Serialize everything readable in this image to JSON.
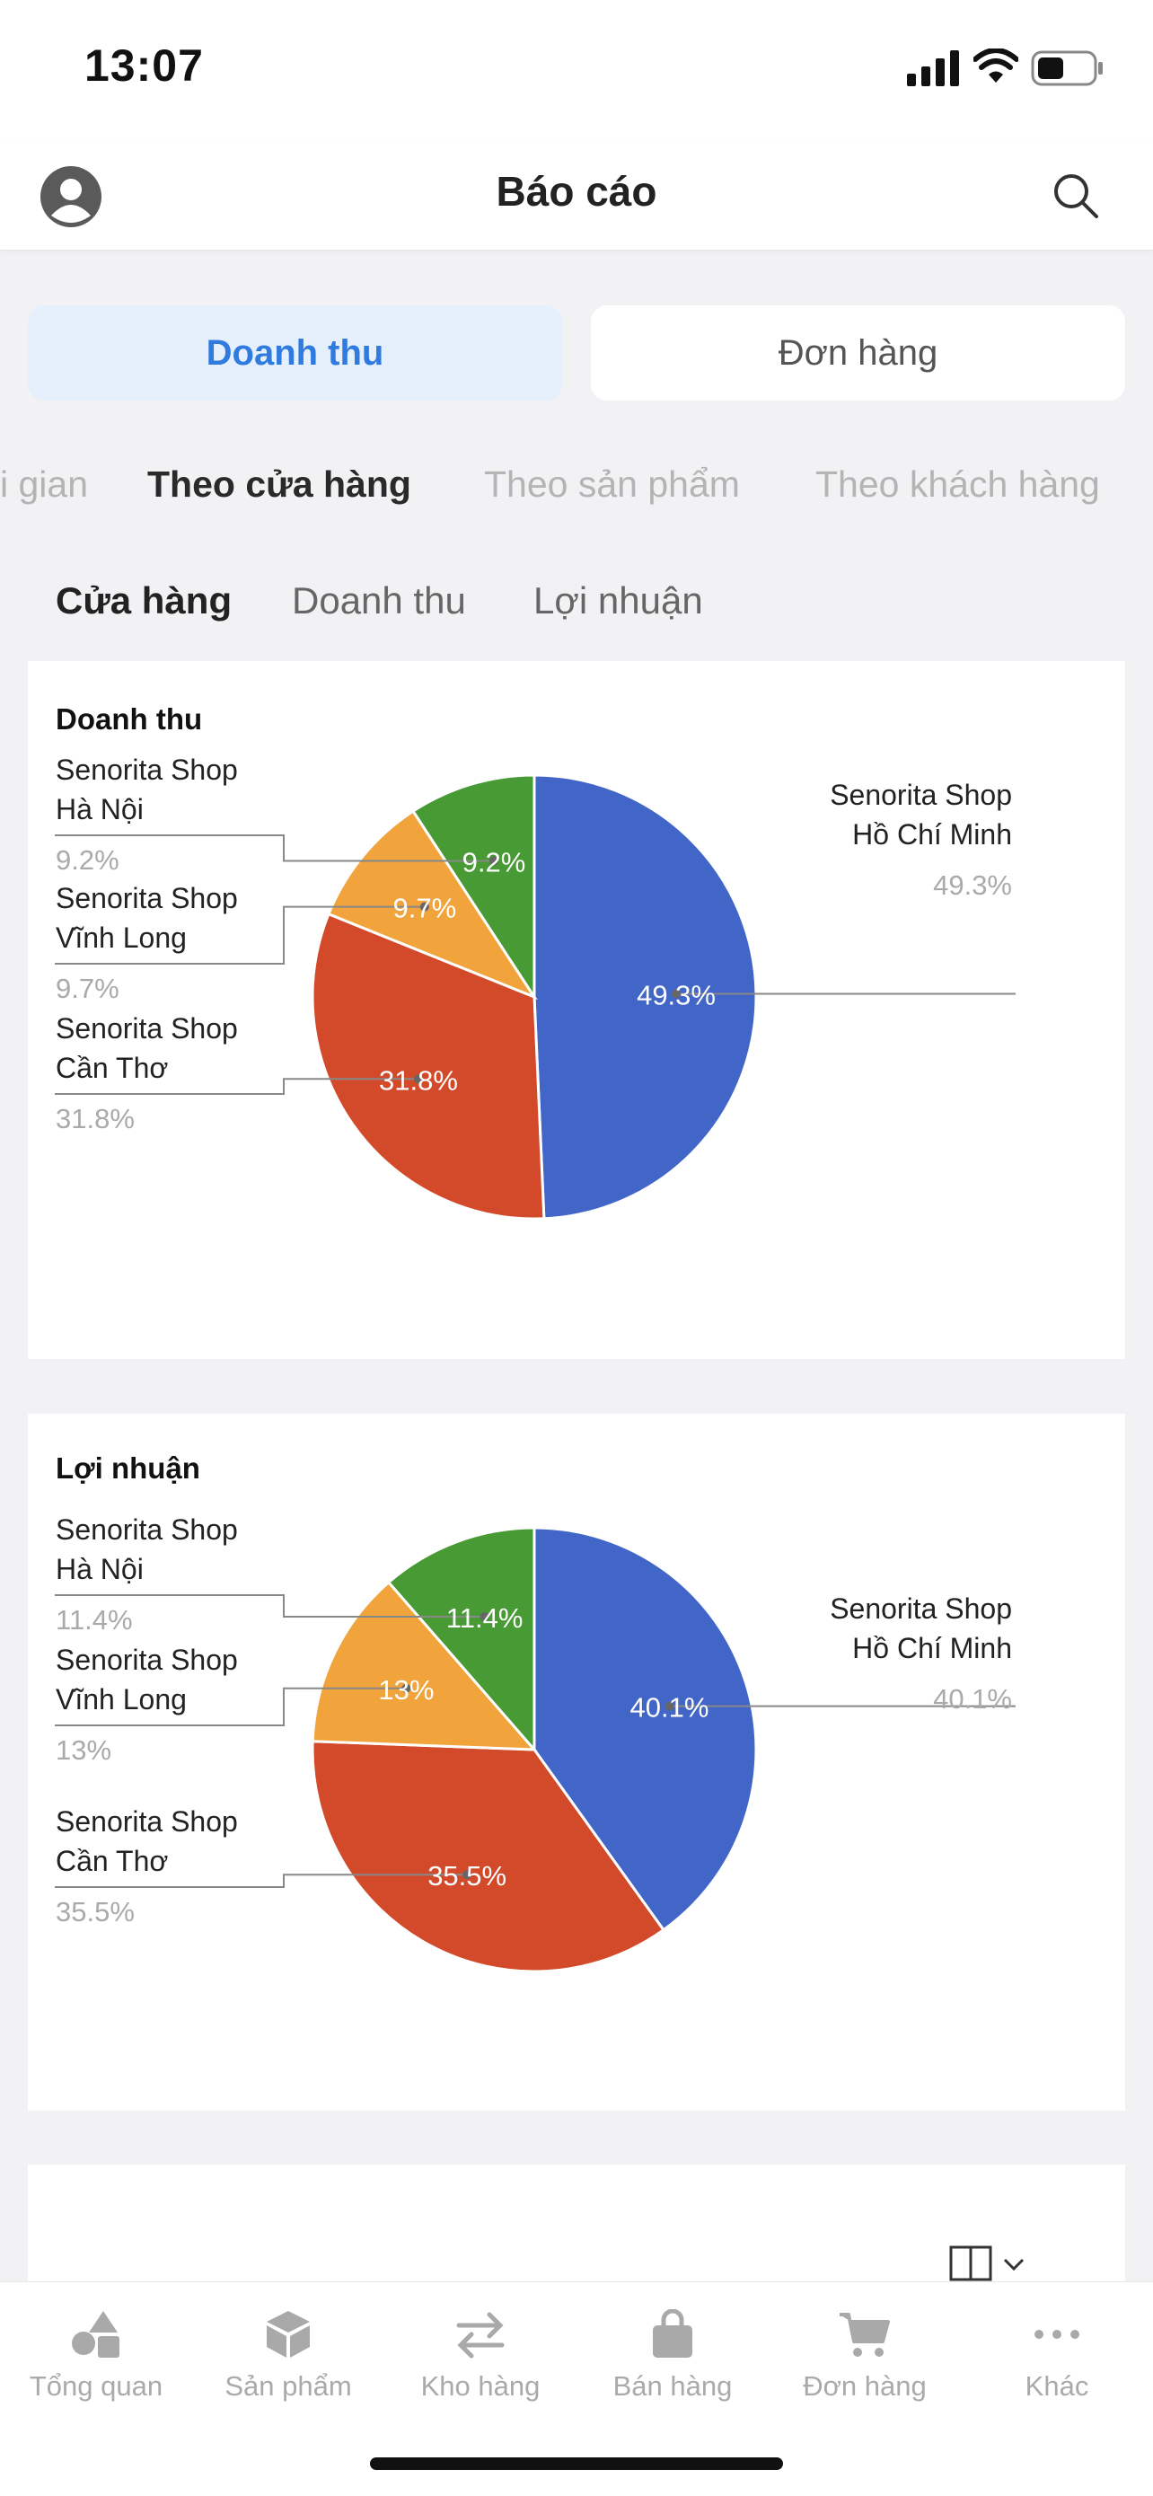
{
  "status": {
    "time": "13:07"
  },
  "header": {
    "title": "Báo cáo"
  },
  "segments": [
    {
      "label": "Doanh thu",
      "active": true
    },
    {
      "label": "Đơn hàng",
      "active": false
    }
  ],
  "scroll_tabs": [
    {
      "label": "i gian"
    },
    {
      "label": "Theo cửa hàng",
      "active": true
    },
    {
      "label": "Theo sản phẩm"
    },
    {
      "label": "Theo khách hàng"
    }
  ],
  "sort_tabs": [
    {
      "label": "Cửa hàng",
      "active": true
    },
    {
      "label": "Doanh thu"
    },
    {
      "label": "Lợi nhuận"
    }
  ],
  "colors": {
    "hcm": "#4266c8",
    "can_tho": "#d24a2a",
    "vinh_long": "#f1a33c",
    "ha_noi": "#479a34"
  },
  "chart_data": [
    {
      "type": "pie",
      "title": "Doanh thu",
      "slices": [
        {
          "name_line1": "Senorita Shop",
          "name_line2": "Hồ Chí Minh",
          "value": 49.3,
          "label": "49.3%",
          "color": "#4266c8"
        },
        {
          "name_line1": "Senorita Shop",
          "name_line2": "Cần Thơ",
          "value": 31.8,
          "label": "31.8%",
          "color": "#d24a2a"
        },
        {
          "name_line1": "Senorita Shop",
          "name_line2": "Vĩnh Long",
          "value": 9.7,
          "label": "9.7%",
          "color": "#f1a33c"
        },
        {
          "name_line1": "Senorita Shop",
          "name_line2": "Hà Nội",
          "value": 9.2,
          "label": "9.2%",
          "color": "#479a34"
        }
      ]
    },
    {
      "type": "pie",
      "title": "Lợi nhuận",
      "slices": [
        {
          "name_line1": "Senorita Shop",
          "name_line2": "Hồ Chí Minh",
          "value": 40.1,
          "label": "40.1%",
          "color": "#4266c8"
        },
        {
          "name_line1": "Senorita Shop",
          "name_line2": "Cần Thơ",
          "value": 35.5,
          "label": "35.5%",
          "color": "#d24a2a"
        },
        {
          "name_line1": "Senorita Shop",
          "name_line2": "Vĩnh Long",
          "value": 13,
          "label": "13%",
          "color": "#f1a33c"
        },
        {
          "name_line1": "Senorita Shop",
          "name_line2": "Hà Nội",
          "value": 11.4,
          "label": "11.4%",
          "color": "#479a34"
        }
      ]
    }
  ],
  "bottom_nav": [
    {
      "label": "Tổng quan",
      "icon": "shapes-icon"
    },
    {
      "label": "Sản phẩm",
      "icon": "box-icon"
    },
    {
      "label": "Kho hàng",
      "icon": "transfer-icon"
    },
    {
      "label": "Bán hàng",
      "icon": "shopping-bag-icon"
    },
    {
      "label": "Đơn hàng",
      "icon": "cart-icon"
    },
    {
      "label": "Khác",
      "icon": "more-icon"
    }
  ]
}
